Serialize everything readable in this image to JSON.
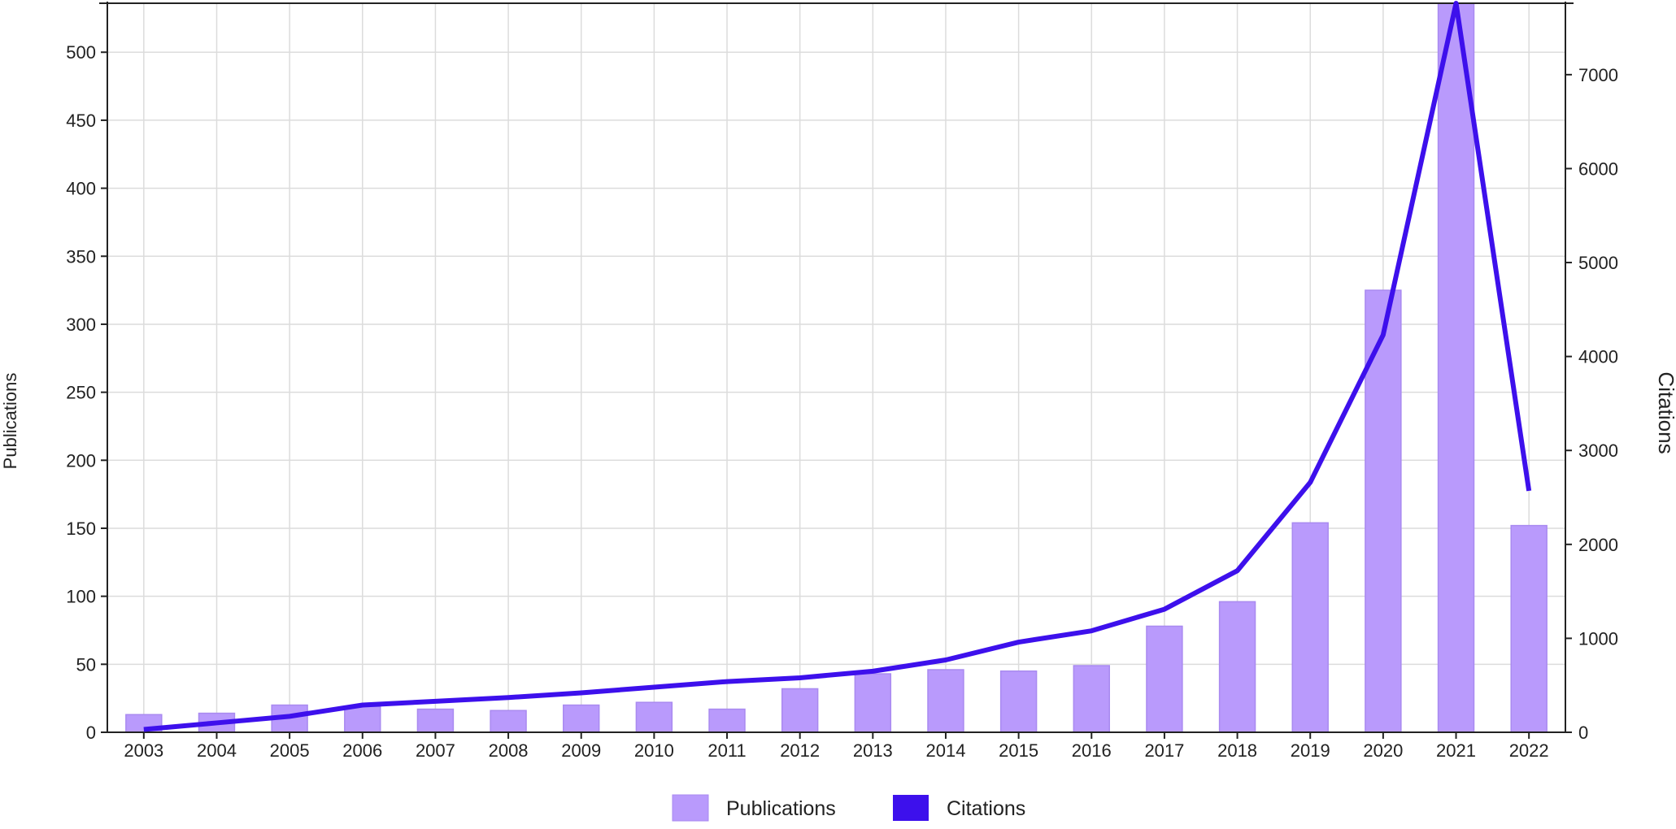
{
  "chart_data": {
    "type": "bar+line",
    "title": "",
    "categories": [
      "2003",
      "2004",
      "2005",
      "2006",
      "2007",
      "2008",
      "2009",
      "2010",
      "2011",
      "2012",
      "2013",
      "2014",
      "2015",
      "2016",
      "2017",
      "2018",
      "2019",
      "2020",
      "2021",
      "2022"
    ],
    "series": [
      {
        "name": "Publications",
        "type": "bar",
        "axis": "left",
        "color": "#b99afc",
        "values": [
          13,
          14,
          20,
          19,
          17,
          16,
          20,
          22,
          17,
          32,
          43,
          46,
          45,
          49,
          78,
          96,
          154,
          325,
          536,
          152
        ]
      },
      {
        "name": "Citations",
        "type": "line",
        "axis": "right",
        "color": "#3d10ec",
        "values": [
          30,
          100,
          170,
          290,
          330,
          370,
          420,
          480,
          540,
          580,
          650,
          770,
          960,
          1080,
          1310,
          1720,
          2660,
          4230,
          7760,
          2570
        ]
      }
    ],
    "y_left": {
      "label": "Publications",
      "min": 0,
      "max": 536,
      "ticks": [
        0,
        50,
        100,
        150,
        200,
        250,
        300,
        350,
        400,
        450,
        500
      ]
    },
    "y_right": {
      "label": "Citations",
      "min": 0,
      "max": 7760,
      "ticks": [
        0,
        1000,
        2000,
        3000,
        4000,
        5000,
        6000,
        7000
      ]
    },
    "grid": true,
    "legend": {
      "position": "bottom-center",
      "items": [
        "Publications",
        "Citations"
      ]
    }
  }
}
